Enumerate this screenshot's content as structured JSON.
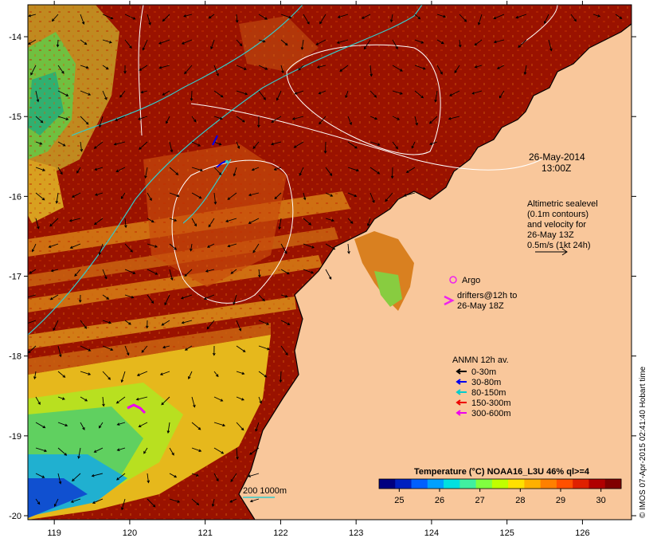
{
  "map": {
    "lon_ticks": [
      "119",
      "120",
      "121",
      "122",
      "123",
      "124",
      "125",
      "126"
    ],
    "lat_ticks": [
      "-14",
      "-15",
      "-16",
      "-17",
      "-18",
      "-19",
      "-20"
    ],
    "lon_range": [
      118.65,
      126.65
    ],
    "lat_range": [
      -20.05,
      -13.6
    ]
  },
  "annotations": {
    "date": "26-May-2014",
    "time": "13:00Z",
    "altimetry_lines": [
      "Altimetric sealevel",
      "(0.1m contours)",
      "and velocity for",
      "26-May 13Z",
      "0.5m/s (1kt 24h)"
    ],
    "argo_label": "Argo",
    "drifters_lines": [
      "drifters@12h to",
      "26-May 18Z"
    ],
    "depth_contour_label": "200  1000m"
  },
  "legend": {
    "title": "ANMN 12h av.",
    "items": [
      {
        "label": "0-30m",
        "color": "#000000"
      },
      {
        "label": "30-80m",
        "color": "#0000ee"
      },
      {
        "label": "80-150m",
        "color": "#00cccc"
      },
      {
        "label": "150-300m",
        "color": "#ee0000"
      },
      {
        "label": "300-600m",
        "color": "#ee00ee"
      }
    ]
  },
  "colorbar": {
    "title": "Temperature (°C) NOAA16_L3U 46% ql>=4",
    "ticks": [
      "25",
      "26",
      "27",
      "28",
      "29",
      "30"
    ],
    "range": [
      24.5,
      30.5
    ],
    "colors": [
      "#000080",
      "#0020c0",
      "#0060ff",
      "#00a0ff",
      "#00e0e0",
      "#40f0a0",
      "#80ff40",
      "#c0ff00",
      "#ffe000",
      "#ffb000",
      "#ff8000",
      "#ff5000",
      "#e02000",
      "#b00000",
      "#800000"
    ]
  },
  "credit": "© IMOS 07-Apr-2015 02:41:40 Hobart time",
  "colors": {
    "land": "#f9c79b",
    "sea_warm": "#9a1200",
    "contour": "#ffffff",
    "isobath": "#33cccc",
    "argo": "#ee22ee"
  }
}
